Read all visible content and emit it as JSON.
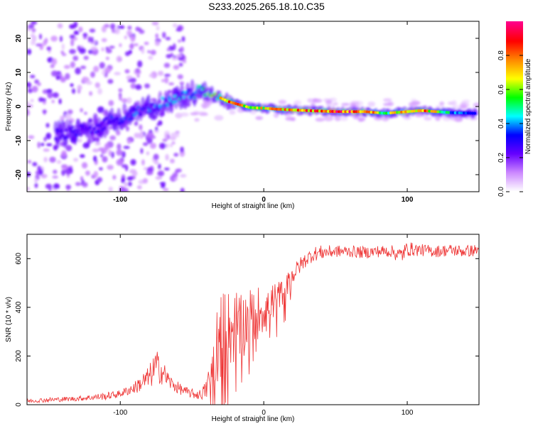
{
  "title": "S233.2025.265.18.10.C35",
  "chart_data": [
    {
      "type": "heatmap",
      "name": "spectrogram",
      "xlabel": "Height of straight line (km)",
      "ylabel": "Frequency (Hz)",
      "xlim": [
        -165,
        150
      ],
      "ylim": [
        -25,
        25
      ],
      "xticks": [
        -100,
        0,
        100
      ],
      "xtick_labels": [
        "-100",
        "0",
        "100"
      ],
      "yticks": [
        -20,
        -10,
        0,
        10,
        20
      ],
      "ytick_labels": [
        "-20",
        "-10",
        "0",
        "10",
        "20"
      ],
      "colorbar": {
        "label": "Normalized spectral amplitude",
        "range": [
          0,
          1
        ],
        "ticks": [
          0.0,
          0.2,
          0.4,
          0.6,
          0.8
        ],
        "tick_labels": [
          "0.0",
          "0.2",
          "0.4",
          "0.6",
          "0.8"
        ],
        "colormap": [
          "#ffffff",
          "#cc88ff",
          "#6600ff",
          "#0000ff",
          "#00ffff",
          "#00ff00",
          "#ffff00",
          "#ff8800",
          "#ff0000",
          "#ff0088"
        ]
      },
      "ridge": {
        "x": [
          -140,
          -120,
          -100,
          -80,
          -60,
          -45,
          -35,
          -25,
          -10,
          0,
          10,
          30,
          50,
          70,
          85,
          100,
          110,
          130,
          148
        ],
        "frequency": [
          -8,
          -6.5,
          -3.5,
          -0.5,
          2.5,
          4.5,
          3.5,
          1.5,
          -0.3,
          -0.5,
          -0.8,
          -1.2,
          -1.5,
          -1.5,
          -2,
          -1.5,
          -1.2,
          -1.8,
          -2
        ],
        "amplitude": [
          0.35,
          0.4,
          0.45,
          0.5,
          0.55,
          0.7,
          0.8,
          0.85,
          0.7,
          0.75,
          0.8,
          0.85,
          0.95,
          0.9,
          0.6,
          0.8,
          0.9,
          0.5,
          0.35
        ]
      }
    },
    {
      "type": "line",
      "name": "snr",
      "xlabel": "Height of straight line (km)",
      "ylabel": "SNR (10 * v/v)",
      "xlim": [
        -165,
        150
      ],
      "ylim": [
        0,
        700
      ],
      "xticks": [
        -100,
        0,
        100
      ],
      "xtick_labels": [
        "-100",
        "0",
        "100"
      ],
      "yticks": [
        0,
        200,
        400,
        600
      ],
      "ytick_labels": [
        "0",
        "200",
        "400",
        "600"
      ],
      "color": "#ee3333",
      "series": [
        {
          "name": "SNR",
          "x": [
            -165,
            -150,
            -130,
            -110,
            -100,
            -90,
            -80,
            -75,
            -70,
            -65,
            -60,
            -55,
            -50,
            -45,
            -40,
            -37,
            -34,
            -31,
            -28,
            -25,
            -22,
            -19,
            -16,
            -13,
            -10,
            -7,
            -4,
            -1,
            2,
            5,
            8,
            11,
            14,
            17,
            20,
            25,
            30,
            35,
            40,
            50,
            60,
            70,
            80,
            90,
            95,
            100,
            110,
            120,
            130,
            140,
            150
          ],
          "values": [
            15,
            20,
            25,
            35,
            45,
            70,
            110,
            160,
            130,
            90,
            70,
            55,
            45,
            40,
            60,
            120,
            220,
            280,
            300,
            320,
            300,
            330,
            310,
            340,
            350,
            365,
            380,
            390,
            400,
            420,
            430,
            450,
            470,
            500,
            530,
            570,
            600,
            620,
            625,
            630,
            630,
            625,
            630,
            630,
            610,
            640,
            635,
            630,
            635,
            630,
            635
          ]
        }
      ],
      "noise_amplitude": [
        8,
        10,
        10,
        15,
        15,
        25,
        50,
        70,
        50,
        30,
        25,
        20,
        20,
        20,
        40,
        80,
        150,
        170,
        170,
        160,
        150,
        150,
        140,
        130,
        130,
        120,
        110,
        100,
        90,
        80,
        70,
        60,
        50,
        45,
        40,
        35,
        30,
        30,
        30,
        25,
        25,
        25,
        25,
        25,
        40,
        30,
        25,
        25,
        25,
        25,
        25
      ]
    }
  ]
}
